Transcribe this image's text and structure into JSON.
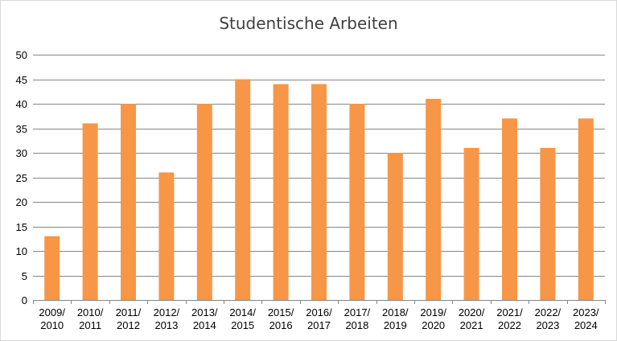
{
  "chart_data": {
    "type": "bar",
    "title": "Studentische Arbeiten",
    "xlabel": "",
    "ylabel": "",
    "ylim": [
      0,
      50
    ],
    "yticks": [
      0,
      5,
      10,
      15,
      20,
      25,
      30,
      35,
      40,
      45,
      50
    ],
    "grid": true,
    "legend": "none",
    "bar_color": "#f79646",
    "categories": [
      [
        "2009/",
        "2010"
      ],
      [
        "2010/",
        "2011"
      ],
      [
        "2011/",
        "2012"
      ],
      [
        "2012/",
        "2013"
      ],
      [
        "2013/",
        "2014"
      ],
      [
        "2014/",
        "2015"
      ],
      [
        "2015/",
        "2016"
      ],
      [
        "2016/",
        "2017"
      ],
      [
        "2017/",
        "2018"
      ],
      [
        "2018/",
        "2019"
      ],
      [
        "2019/",
        "2020"
      ],
      [
        "2020/",
        "2021"
      ],
      [
        "2021/",
        "2022"
      ],
      [
        "2022/",
        "2023"
      ],
      [
        "2023/",
        "2024"
      ]
    ],
    "values": [
      13,
      36,
      40,
      26,
      40,
      45,
      44,
      44,
      40,
      30,
      41,
      31,
      37,
      31,
      37
    ]
  }
}
